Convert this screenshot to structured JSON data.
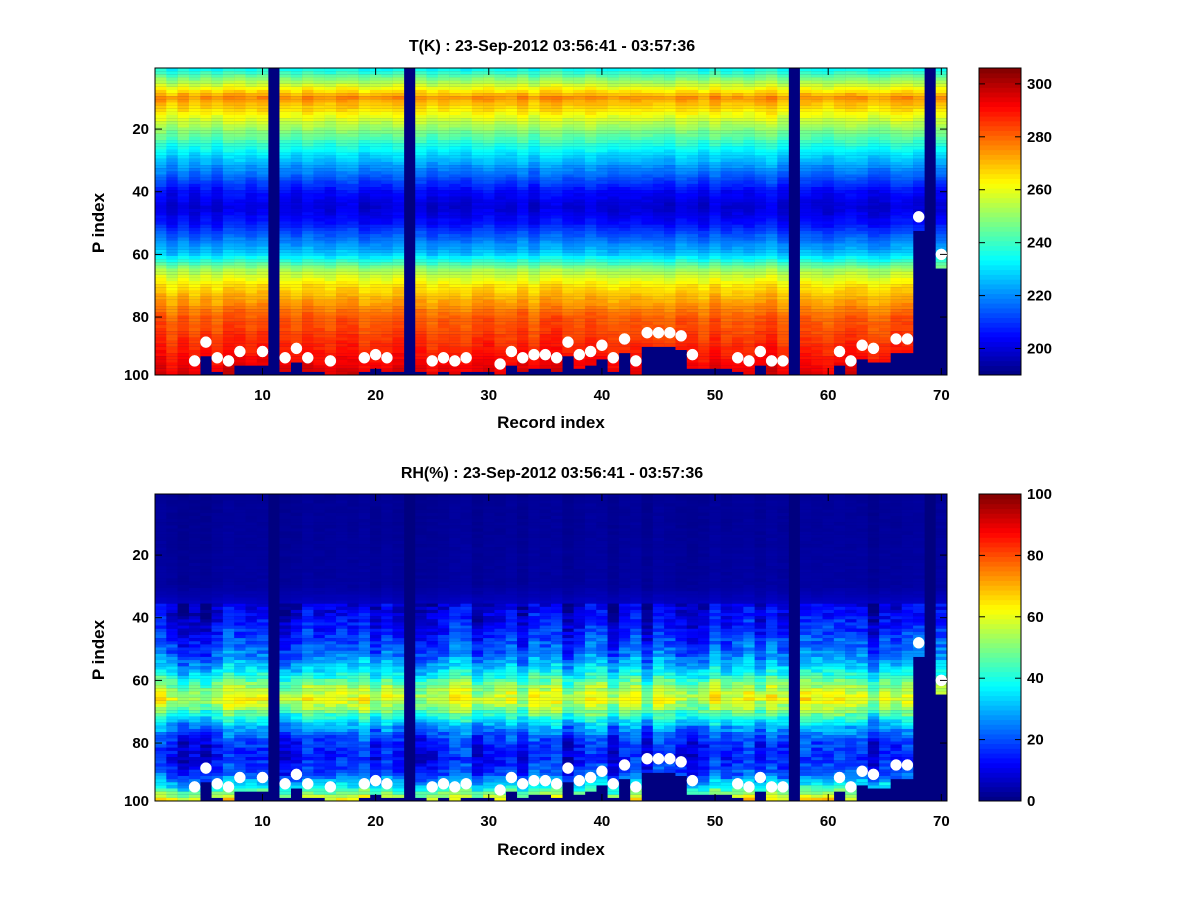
{
  "chart_data": [
    {
      "type": "heatmap",
      "title": "T(K) : 23-Sep-2012 03:56:41 - 03:57:36",
      "xlabel": "Record index",
      "ylabel": "P index",
      "xlim": [
        0.5,
        70.5
      ],
      "ylim": [
        0.5,
        98.5
      ],
      "y_reversed": true,
      "xticks": [
        10,
        20,
        30,
        40,
        50,
        60,
        70
      ],
      "yticks": [
        20,
        40,
        60,
        80,
        100
      ],
      "colormap": "jet",
      "clim": [
        190,
        306
      ],
      "colorbar_ticks": [
        200,
        220,
        240,
        260,
        280,
        300
      ],
      "profile_table": {
        "p_index": [
          1,
          10,
          20,
          30,
          40,
          45,
          50,
          60,
          65,
          70,
          80,
          85,
          90,
          95,
          98
        ],
        "value": [
          235,
          275,
          250,
          226,
          205,
          200,
          206,
          228,
          252,
          265,
          281,
          284,
          288,
          292,
          295
        ]
      },
      "fill_value_records": [
        11,
        23,
        57,
        69
      ],
      "surface_markers": {
        "x": [
          4,
          5,
          6,
          7,
          8,
          10,
          12,
          13,
          14,
          16,
          19,
          20,
          21,
          25,
          26,
          27,
          28,
          31,
          32,
          33,
          34,
          35,
          36,
          37,
          38,
          39,
          40,
          41,
          42,
          43,
          44,
          45,
          46,
          47,
          48,
          52,
          53,
          54,
          55,
          56,
          61,
          62,
          63,
          64,
          66,
          67,
          68,
          70
        ],
        "y": [
          94,
          88,
          93,
          94,
          91,
          91,
          93,
          90,
          93,
          94,
          93,
          92,
          93,
          94,
          93,
          94,
          93,
          95,
          91,
          93,
          92,
          92,
          93,
          88,
          92,
          91,
          89,
          93,
          87,
          94,
          85,
          85,
          85,
          86,
          92,
          93,
          94,
          91,
          94,
          94,
          91,
          94,
          89,
          90,
          87,
          87,
          48,
          60
        ]
      }
    },
    {
      "type": "heatmap",
      "title": "RH(%) : 23-Sep-2012 03:56:41 - 03:57:36",
      "xlabel": "Record index",
      "ylabel": "P index",
      "xlim": [
        0.5,
        70.5
      ],
      "ylim": [
        0.5,
        98.5
      ],
      "y_reversed": true,
      "xticks": [
        10,
        20,
        30,
        40,
        50,
        60,
        70
      ],
      "yticks": [
        20,
        40,
        60,
        80,
        100
      ],
      "colormap": "jet",
      "clim": [
        0,
        100
      ],
      "colorbar_ticks": [
        0,
        20,
        40,
        60,
        80,
        100
      ],
      "profile_table": {
        "p_index": [
          1,
          30,
          38,
          45,
          52,
          58,
          62,
          66,
          70,
          75,
          80,
          85,
          90,
          94,
          98
        ],
        "value": [
          2,
          3,
          8,
          14,
          22,
          36,
          50,
          58,
          46,
          26,
          14,
          12,
          18,
          35,
          60
        ]
      },
      "fill_value_records": [
        11,
        23,
        57,
        69
      ],
      "surface_markers": {
        "x": [
          4,
          5,
          6,
          7,
          8,
          10,
          12,
          13,
          14,
          16,
          19,
          20,
          21,
          25,
          26,
          27,
          28,
          31,
          32,
          33,
          34,
          35,
          36,
          37,
          38,
          39,
          40,
          41,
          42,
          43,
          44,
          45,
          46,
          47,
          48,
          52,
          53,
          54,
          55,
          56,
          61,
          62,
          63,
          64,
          66,
          67,
          68,
          70
        ],
        "y": [
          94,
          88,
          93,
          94,
          91,
          91,
          93,
          90,
          93,
          94,
          93,
          92,
          93,
          94,
          93,
          94,
          93,
          95,
          91,
          93,
          92,
          92,
          93,
          88,
          92,
          91,
          89,
          93,
          87,
          94,
          85,
          85,
          85,
          86,
          92,
          93,
          94,
          91,
          94,
          94,
          91,
          94,
          89,
          90,
          87,
          87,
          48,
          60
        ]
      }
    }
  ]
}
